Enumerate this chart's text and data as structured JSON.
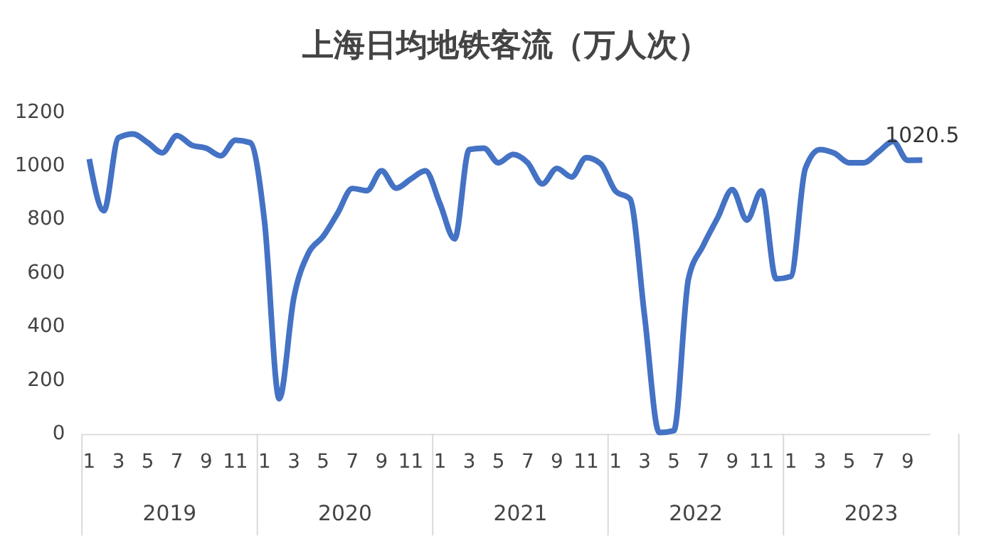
{
  "chart_data": {
    "type": "line",
    "title": "上海日均地铁客流（万人次）",
    "categories": [
      "1",
      null,
      "3",
      null,
      "5",
      null,
      "7",
      null,
      "9",
      null,
      "11",
      null,
      "1",
      null,
      "3",
      null,
      "5",
      null,
      "7",
      null,
      "9",
      null,
      "11",
      null,
      "1",
      null,
      "3",
      null,
      "5",
      null,
      "7",
      null,
      "9",
      null,
      "11",
      null,
      "1",
      null,
      "3",
      null,
      "5",
      null,
      "7",
      null,
      "9",
      null,
      "11",
      null,
      "1",
      null,
      "3",
      null,
      "5",
      null,
      "7",
      null,
      "9",
      null
    ],
    "series": [
      {
        "color": "#4472c4",
        "values": [
          1025,
          832,
          1104,
          1118,
          1086,
          1048,
          1112,
          1077,
          1065,
          1037,
          1095,
          1086,
          788,
          131,
          508,
          674,
          736,
          823,
          915,
          907,
          981,
          916,
          950,
          981,
          858,
          727,
          1060,
          1065,
          1011,
          1042,
          1011,
          932,
          990,
          958,
          1030,
          1007,
          906,
          876,
          438,
          5,
          12,
          578,
          701,
          806,
          911,
          797,
          906,
          578,
          587,
          990,
          1060,
          1046,
          1011,
          1011,
          1051,
          1090,
          1020,
          1020.5
        ],
        "value_labels": [
          null,
          null,
          null,
          null,
          null,
          null,
          null,
          null,
          null,
          null,
          null,
          null,
          null,
          null,
          null,
          null,
          null,
          null,
          null,
          null,
          null,
          null,
          null,
          null,
          null,
          null,
          null,
          null,
          null,
          null,
          null,
          null,
          null,
          null,
          null,
          null,
          null,
          null,
          null,
          null,
          null,
          null,
          null,
          null,
          null,
          null,
          null,
          null,
          null,
          null,
          null,
          null,
          null,
          null,
          null,
          null,
          null,
          "1020.5"
        ]
      }
    ],
    "annotations": [
      "2019",
      "2020",
      "2021",
      "2022",
      "2023"
    ],
    "ylim": [
      0,
      1200
    ],
    "yticks": [
      0,
      200,
      400,
      600,
      800,
      1000,
      1200
    ],
    "grid": false,
    "line_style": "solid",
    "marker": "none"
  }
}
